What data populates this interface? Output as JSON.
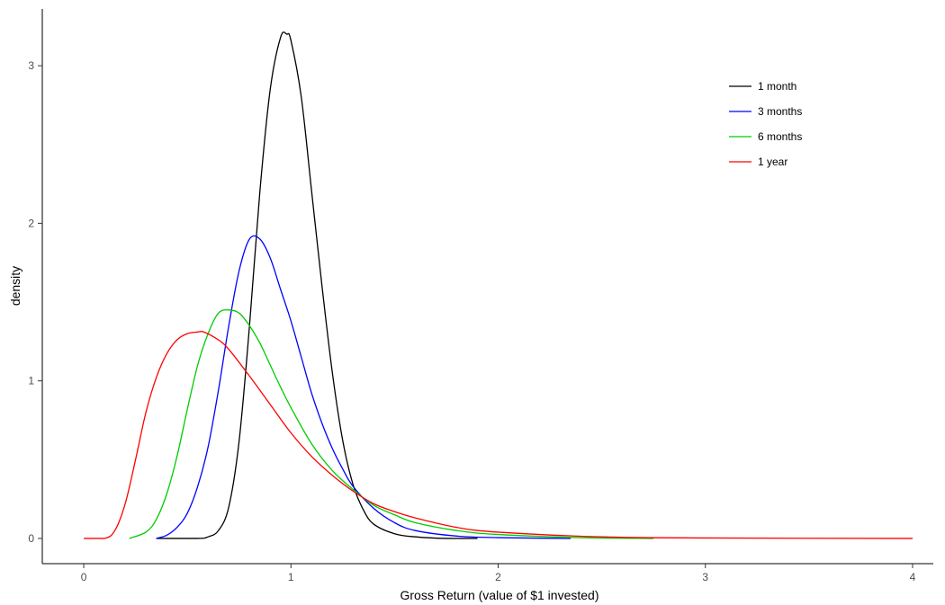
{
  "chart_data": {
    "type": "line",
    "title": "",
    "xlabel": "Gross Return (value of $1 invested)",
    "ylabel": "density",
    "xlim": [
      -0.2,
      4.1
    ],
    "ylim": [
      -0.16,
      3.36
    ],
    "x_ticks": [
      0,
      1,
      2,
      3,
      4
    ],
    "x_tick_labels": [
      "0",
      "1",
      "2",
      "3",
      "4"
    ],
    "y_ticks": [
      0,
      1,
      2,
      3
    ],
    "y_tick_labels": [
      "0",
      "1",
      "2",
      "3"
    ],
    "grid": false,
    "legend_position": "top-right",
    "series": [
      {
        "name": "1 month",
        "color": "#000000",
        "x": [
          0.35,
          0.55,
          0.6,
          0.65,
          0.7,
          0.75,
          0.8,
          0.85,
          0.9,
          0.95,
          0.98,
          1.0,
          1.05,
          1.1,
          1.15,
          1.2,
          1.25,
          1.3,
          1.35,
          1.4,
          1.5,
          1.6,
          1.75,
          1.9
        ],
        "y": [
          0.0,
          0.0,
          0.01,
          0.05,
          0.2,
          0.62,
          1.35,
          2.2,
          2.85,
          3.18,
          3.2,
          3.16,
          2.8,
          2.2,
          1.6,
          1.05,
          0.62,
          0.34,
          0.18,
          0.09,
          0.03,
          0.01,
          0.0,
          0.0
        ]
      },
      {
        "name": "3 months",
        "color": "#0000ff",
        "x": [
          0.35,
          0.4,
          0.45,
          0.5,
          0.55,
          0.6,
          0.65,
          0.7,
          0.75,
          0.8,
          0.85,
          0.9,
          0.95,
          1.0,
          1.05,
          1.1,
          1.15,
          1.2,
          1.25,
          1.3,
          1.4,
          1.5,
          1.6,
          1.8,
          2.0,
          2.35
        ],
        "y": [
          0.0,
          0.02,
          0.07,
          0.16,
          0.33,
          0.58,
          0.94,
          1.35,
          1.7,
          1.9,
          1.9,
          1.78,
          1.58,
          1.38,
          1.15,
          0.92,
          0.73,
          0.57,
          0.44,
          0.33,
          0.19,
          0.1,
          0.05,
          0.015,
          0.005,
          0.0
        ]
      },
      {
        "name": "6 months",
        "color": "#00cc00",
        "x": [
          0.22,
          0.3,
          0.35,
          0.4,
          0.45,
          0.5,
          0.55,
          0.6,
          0.65,
          0.7,
          0.75,
          0.8,
          0.85,
          0.9,
          0.95,
          1.0,
          1.1,
          1.2,
          1.3,
          1.4,
          1.5,
          1.6,
          1.8,
          2.0,
          2.4,
          2.75
        ],
        "y": [
          0.0,
          0.04,
          0.12,
          0.28,
          0.52,
          0.82,
          1.1,
          1.3,
          1.43,
          1.45,
          1.43,
          1.35,
          1.24,
          1.1,
          0.96,
          0.83,
          0.6,
          0.43,
          0.31,
          0.21,
          0.15,
          0.1,
          0.05,
          0.025,
          0.005,
          0.0
        ]
      },
      {
        "name": "1 year",
        "color": "#ff0000",
        "x": [
          0.0,
          0.1,
          0.15,
          0.2,
          0.25,
          0.3,
          0.35,
          0.4,
          0.45,
          0.5,
          0.55,
          0.58,
          0.65,
          0.7,
          0.8,
          0.9,
          1.0,
          1.1,
          1.2,
          1.3,
          1.4,
          1.5,
          1.6,
          1.8,
          2.0,
          2.5,
          3.0,
          4.0
        ],
        "y": [
          0.0,
          0.0,
          0.05,
          0.22,
          0.5,
          0.8,
          1.02,
          1.17,
          1.26,
          1.3,
          1.31,
          1.31,
          1.26,
          1.2,
          1.03,
          0.85,
          0.67,
          0.52,
          0.4,
          0.3,
          0.22,
          0.17,
          0.13,
          0.07,
          0.04,
          0.01,
          0.003,
          0.0
        ]
      }
    ]
  }
}
